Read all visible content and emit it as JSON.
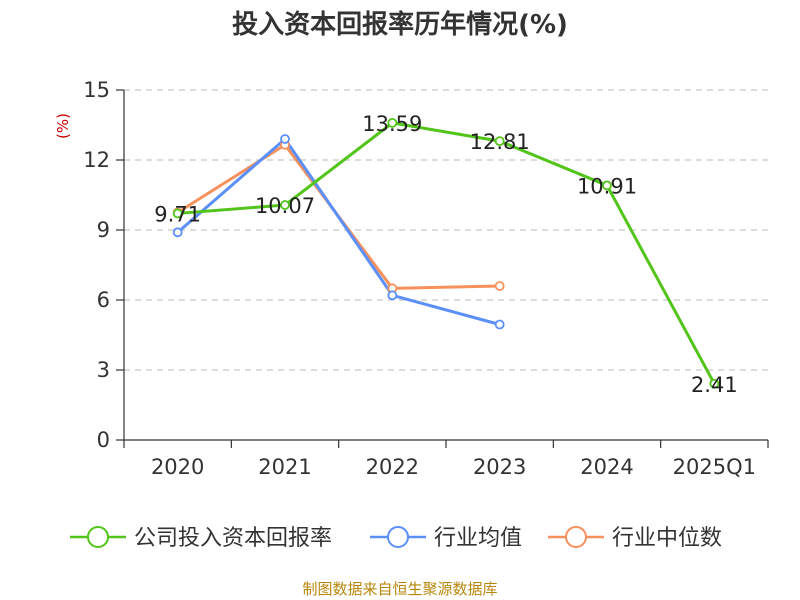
{
  "chart_data": {
    "type": "line",
    "title": "投入资本回报率历年情况(%)",
    "ylabel": "(%)",
    "xlabel": "",
    "categories": [
      "2020",
      "2021",
      "2022",
      "2023",
      "2024",
      "2025Q1"
    ],
    "ylim": [
      0,
      15
    ],
    "yticks": [
      0,
      3,
      6,
      9,
      12,
      15
    ],
    "grid": true,
    "legend_position": "bottom",
    "series": [
      {
        "name": "公司投入资本回报率",
        "color": "#52c41a",
        "values": [
          9.71,
          10.07,
          13.59,
          12.81,
          10.91,
          2.41
        ],
        "labels": [
          "9.71",
          "10.07",
          "13.59",
          "12.81",
          "10.91",
          "2.41"
        ]
      },
      {
        "name": "行业均值",
        "color": "#5b8ff9",
        "values": [
          8.9,
          12.9,
          6.2,
          4.95,
          null,
          null
        ]
      },
      {
        "name": "行业中位数",
        "color": "#f6915c",
        "values": [
          9.75,
          12.65,
          6.5,
          6.6,
          null,
          null
        ]
      }
    ],
    "source": "制图数据来自恒生聚源数据库"
  }
}
